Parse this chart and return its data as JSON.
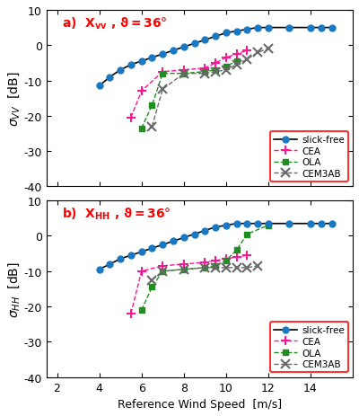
{
  "slick_free_x": [
    4.0,
    4.5,
    5.0,
    5.5,
    6.0,
    6.5,
    7.0,
    7.5,
    8.0,
    8.5,
    9.0,
    9.5,
    10.0,
    10.5,
    11.0,
    11.5,
    12.0,
    13.0,
    14.0,
    14.5,
    15.0
  ],
  "slick_free_vv": [
    -11.5,
    -9.0,
    -7.0,
    -5.5,
    -4.5,
    -3.5,
    -2.5,
    -1.5,
    -0.5,
    0.5,
    1.5,
    2.5,
    3.5,
    4.0,
    4.5,
    5.0,
    5.0,
    5.0,
    5.0,
    5.0,
    5.0
  ],
  "slick_free_hh": [
    -9.5,
    -8.0,
    -6.5,
    -5.5,
    -4.5,
    -3.5,
    -2.5,
    -1.5,
    -0.5,
    0.5,
    1.5,
    2.5,
    3.0,
    3.5,
    3.5,
    3.5,
    3.5,
    3.5,
    3.5,
    3.5,
    3.5
  ],
  "cea_vv_x": [
    5.5,
    6.0,
    7.0,
    8.0,
    9.0,
    9.5,
    10.0,
    10.5,
    11.0
  ],
  "cea_vv_y": [
    -20.5,
    -13.0,
    -7.5,
    -7.0,
    -6.5,
    -5.0,
    -3.5,
    -2.5,
    -1.5
  ],
  "ola_vv_x": [
    6.0,
    6.5,
    7.0,
    8.0,
    9.0,
    9.5,
    10.0,
    10.5
  ],
  "ola_vv_y": [
    -23.5,
    -17.0,
    -8.0,
    -8.0,
    -7.5,
    -7.0,
    -6.0,
    -4.5
  ],
  "cem3ab_vv_x": [
    6.5,
    7.0,
    8.0,
    9.0,
    9.5,
    10.0,
    10.5,
    11.0,
    11.5,
    12.0
  ],
  "cem3ab_vv_y": [
    -23.0,
    -12.5,
    -8.0,
    -8.0,
    -7.5,
    -7.0,
    -5.5,
    -4.0,
    -2.0,
    -1.0
  ],
  "cea_hh_x": [
    5.5,
    6.0,
    7.0,
    8.0,
    9.0,
    9.5,
    10.0,
    10.5,
    11.0
  ],
  "cea_hh_y": [
    -22.0,
    -10.0,
    -8.5,
    -8.0,
    -7.5,
    -7.0,
    -6.5,
    -6.0,
    -5.5
  ],
  "ola_hh_x": [
    6.0,
    6.5,
    7.0,
    8.0,
    9.0,
    9.5,
    10.0,
    10.5,
    11.0,
    12.0
  ],
  "ola_hh_y": [
    -21.0,
    -14.5,
    -10.0,
    -9.5,
    -9.0,
    -8.5,
    -7.0,
    -4.0,
    0.5,
    3.0
  ],
  "cem3ab_hh_x": [
    6.5,
    7.0,
    8.0,
    9.0,
    9.5,
    10.0,
    10.5,
    11.0,
    11.5
  ],
  "cem3ab_hh_y": [
    -12.5,
    -10.0,
    -9.5,
    -9.0,
    -9.0,
    -9.0,
    -9.0,
    -9.0,
    -8.5
  ],
  "color_slick": "#1a78c2",
  "color_cea": "#ff1493",
  "color_ola": "#228B22",
  "color_cem3ab": "#696969",
  "xlim": [
    1.5,
    16.0
  ],
  "ylim": [
    -40,
    10
  ],
  "xticks": [
    2,
    4,
    6,
    8,
    10,
    12,
    14
  ],
  "yticks": [
    -40,
    -30,
    -20,
    -10,
    0,
    10
  ],
  "xlabel": "Reference Wind Speed  [m/s]"
}
